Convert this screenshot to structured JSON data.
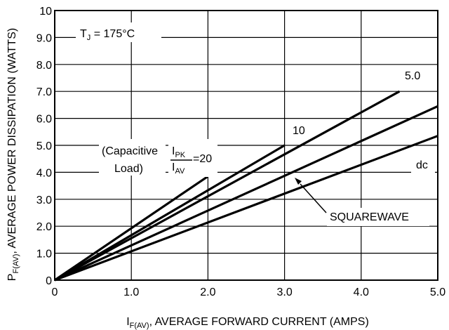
{
  "chart_data": {
    "type": "line",
    "title": "",
    "x_axis": {
      "label_main": "I",
      "label_sub": "F(AV)",
      "label_rest": ", AVERAGE FORWARD CURRENT (AMPS)",
      "range": [
        0,
        5
      ],
      "ticks": [
        0,
        1,
        2,
        3,
        4,
        5
      ],
      "tick_labels": [
        "0",
        "1.0",
        "2.0",
        "3.0",
        "4.0",
        "5.0"
      ]
    },
    "y_axis": {
      "label_main": "P",
      "label_sub": "F(AV)",
      "label_rest": ", AVERAGE POWER DISSIPATION (WATTS)",
      "range": [
        0,
        10
      ],
      "ticks": [
        0,
        1,
        2,
        3,
        4,
        5,
        6,
        7,
        8,
        9,
        10
      ],
      "tick_labels": [
        "0",
        "1.0",
        "2.0",
        "3.0",
        "4.0",
        "5.0",
        "6.0",
        "7.0",
        "8.0",
        "9.0",
        "10"
      ]
    },
    "grid": true,
    "series": [
      {
        "name": "20",
        "x": [
          0,
          2.0
        ],
        "y": [
          0,
          3.85
        ]
      },
      {
        "name": "10",
        "x": [
          0,
          3.0
        ],
        "y": [
          0,
          5.0
        ]
      },
      {
        "name": "5.0",
        "x": [
          0,
          4.5
        ],
        "y": [
          0,
          7.0
        ]
      },
      {
        "name": "SQUAREWAVE",
        "x": [
          0,
          5.0
        ],
        "y": [
          0,
          6.45
        ]
      },
      {
        "name": "dc",
        "x": [
          0,
          5.0
        ],
        "y": [
          0,
          5.35
        ]
      }
    ],
    "annotations": {
      "tj_main": "T",
      "tj_sub": "J",
      "tj_rest": " = 175°C",
      "capacitive_line1": "(Capacitive",
      "capacitive_line2": "Load)",
      "ipk": "I",
      "ipk_sub": "PK",
      "iav": "I",
      "iav_sub": "AV",
      "ratio_value": "=20",
      "label_10": "10",
      "label_5": "5.0",
      "label_dc": "dc",
      "label_squarewave": "SQUAREWAVE"
    }
  }
}
